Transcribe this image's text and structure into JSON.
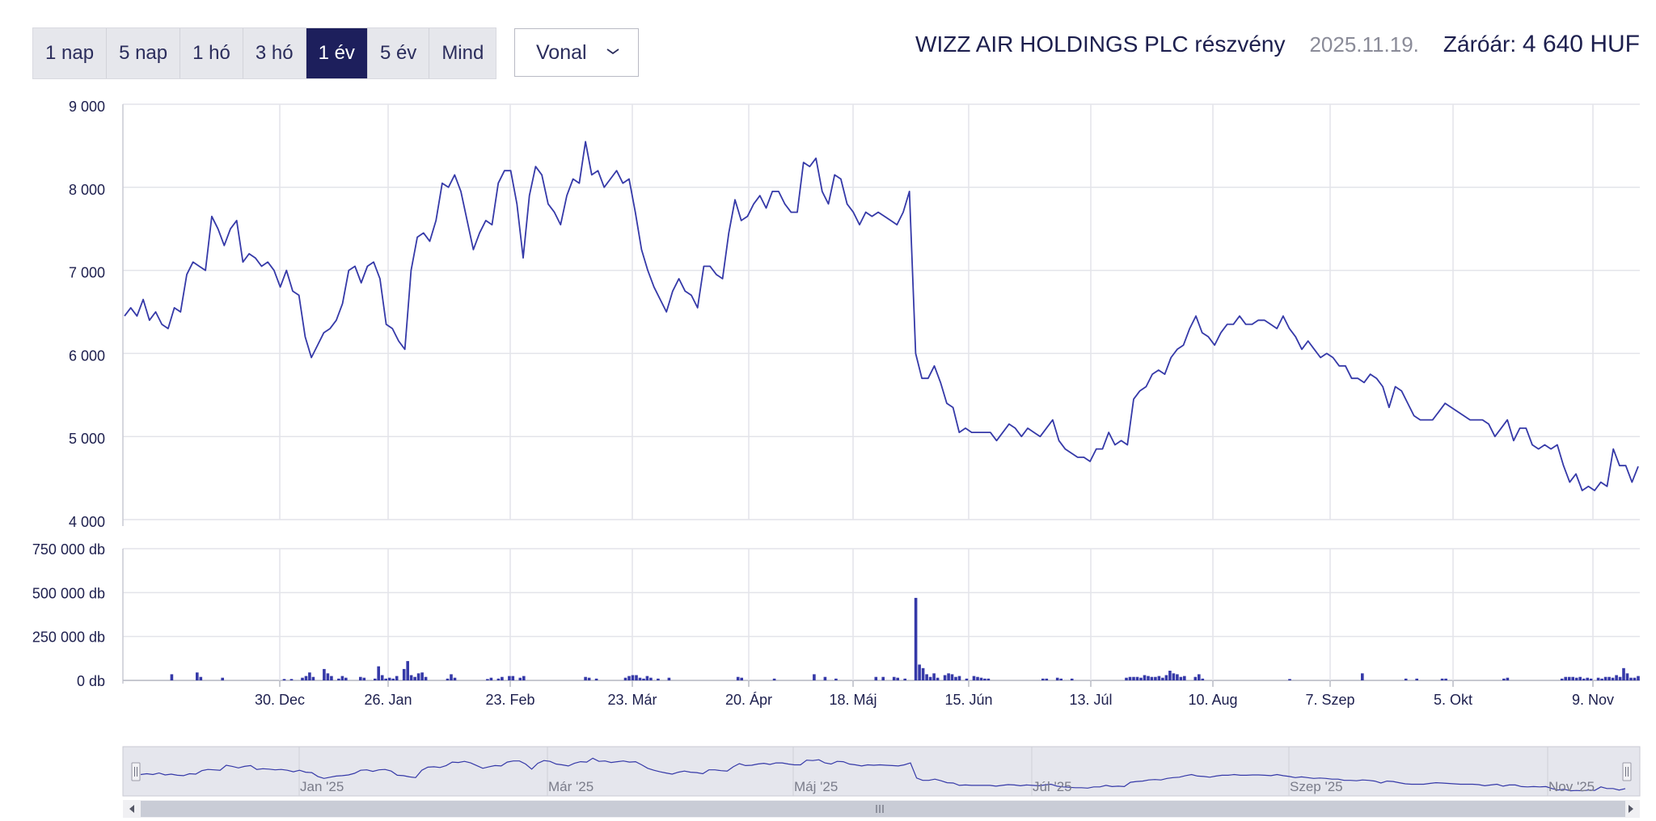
{
  "tabs": [
    {
      "label": "1 nap",
      "active": false
    },
    {
      "label": "5 nap",
      "active": false
    },
    {
      "label": "1 hó",
      "active": false
    },
    {
      "label": "3 hó",
      "active": false
    },
    {
      "label": "1 év",
      "active": true
    },
    {
      "label": "5 év",
      "active": false
    },
    {
      "label": "Mind",
      "active": false
    }
  ],
  "chart_type_select": {
    "value": "Vonal"
  },
  "header": {
    "title": "WIZZ AIR HOLDINGS PLC részvény",
    "date": "2025.11.19.",
    "close_label": "Záróár:",
    "close_value": "4 640 HUF"
  },
  "colors": {
    "line": "#3539a8",
    "bar": "#3539a8",
    "active_tab": "#1d1f5c",
    "grid": "#e3e4ea",
    "navigator_mask": "#e5e6ed"
  },
  "chart_data": [
    {
      "type": "line",
      "ylim": [
        4000,
        9000
      ],
      "y_ticks": [
        "9 000",
        "8 000",
        "7 000",
        "6 000",
        "5 000",
        "4 000"
      ],
      "x_ticks": [
        "30. Dec",
        "26. Jan",
        "23. Feb",
        "23. Már",
        "20. Ápr",
        "18. Máj",
        "15. Jún",
        "13. Júl",
        "10. Aug",
        "7. Szep",
        "5. Okt",
        "9. Nov"
      ],
      "series": [
        {
          "values": [
            6450,
            6550,
            6450,
            6650,
            6400,
            6500,
            6350,
            6300,
            6550,
            6500,
            6950,
            7100,
            7050,
            7000,
            7650,
            7500,
            7300,
            7500,
            7600,
            7100,
            7200,
            7150,
            7050,
            7100,
            7000,
            6800,
            7000,
            6750,
            6700,
            6200,
            5950,
            6100,
            6250,
            6300,
            6400,
            6600,
            7000,
            7050,
            6850,
            7050,
            7100,
            6900,
            6350,
            6300,
            6150,
            6050,
            7000,
            7400,
            7450,
            7350,
            7600,
            8050,
            8000,
            8150,
            7950,
            7600,
            7250,
            7450,
            7600,
            7550,
            8050,
            8200,
            8200,
            7800,
            7150,
            7900,
            8250,
            8150,
            7800,
            7700,
            7550,
            7900,
            8100,
            8050,
            8550,
            8150,
            8200,
            8000,
            8100,
            8200,
            8050,
            8100,
            7700,
            7250,
            7000,
            6800,
            6650,
            6500,
            6750,
            6900,
            6750,
            6700,
            6550,
            7050,
            7050,
            6950,
            6900,
            7450,
            7850,
            7600,
            7650,
            7800,
            7900,
            7750,
            7950,
            7950,
            7800,
            7700,
            7700,
            8300,
            8250,
            8350,
            7950,
            7800,
            8150,
            8100,
            7800,
            7700,
            7550,
            7700,
            7650,
            7700,
            7650,
            7600,
            7550,
            7700,
            7950,
            6000,
            5700,
            5700,
            5850,
            5650,
            5400,
            5350,
            5050,
            5100,
            5050,
            5050,
            5050,
            5050,
            4950,
            5050,
            5150,
            5100,
            5000,
            5100,
            5050,
            5000,
            5100,
            5200,
            4950,
            4850,
            4800,
            4750,
            4750,
            4700,
            4850,
            4850,
            5050,
            4900,
            4950,
            4900,
            5450,
            5550,
            5600,
            5750,
            5800,
            5750,
            5950,
            6050,
            6100,
            6300,
            6450,
            6250,
            6200,
            6100,
            6250,
            6350,
            6350,
            6450,
            6350,
            6350,
            6400,
            6400,
            6350,
            6300,
            6450,
            6300,
            6200,
            6050,
            6150,
            6050,
            5950,
            6000,
            5950,
            5850,
            5850,
            5700,
            5700,
            5650,
            5750,
            5700,
            5600,
            5350,
            5600,
            5550,
            5400,
            5250,
            5200,
            5200,
            5200,
            5300,
            5400,
            5350,
            5300,
            5250,
            5200,
            5200,
            5200,
            5150,
            5000,
            5100,
            5200,
            4950,
            5100,
            5100,
            4900,
            4850,
            4900,
            4850,
            4900,
            4650,
            4450,
            4550,
            4350,
            4400,
            4350,
            4450,
            4400,
            4850,
            4650,
            4650,
            4450,
            4640
          ]
        }
      ]
    },
    {
      "type": "bar",
      "ylim": [
        0,
        750000
      ],
      "y_ticks": [
        "750 000 db",
        "500 000 db",
        "250 000 db",
        "0 db"
      ],
      "series": [
        {
          "values": [
            0,
            0,
            0,
            0,
            0,
            0,
            0,
            0,
            0,
            0,
            0,
            0,
            0,
            35000,
            0,
            0,
            0,
            0,
            0,
            0,
            45000,
            20000,
            0,
            0,
            0,
            0,
            0,
            15000,
            0,
            0,
            0,
            0,
            0,
            0,
            0,
            0,
            0,
            0,
            0,
            0,
            0,
            0,
            0,
            0,
            8000,
            0,
            8000,
            0,
            0,
            15000,
            25000,
            45000,
            20000,
            0,
            0,
            65000,
            40000,
            25000,
            0,
            10000,
            25000,
            15000,
            0,
            0,
            0,
            20000,
            15000,
            0,
            0,
            10000,
            80000,
            30000,
            10000,
            15000,
            10000,
            25000,
            0,
            65000,
            110000,
            30000,
            20000,
            40000,
            45000,
            20000,
            0,
            0,
            0,
            0,
            0,
            10000,
            35000,
            15000,
            0,
            0,
            0,
            0,
            0,
            0,
            0,
            0,
            8000,
            15000,
            0,
            10000,
            20000,
            0,
            25000,
            25000,
            0,
            15000,
            25000,
            0,
            0,
            0,
            0,
            0,
            0,
            0,
            0,
            0,
            0,
            0,
            0,
            0,
            0,
            0,
            0,
            20000,
            15000,
            0,
            10000,
            0,
            0,
            0,
            0,
            0,
            0,
            0,
            15000,
            25000,
            30000,
            30000,
            15000,
            10000,
            25000,
            15000,
            0,
            10000,
            0,
            0,
            15000,
            0,
            0,
            0,
            0,
            0,
            0,
            0,
            0,
            0,
            0,
            0,
            0,
            0,
            0,
            0,
            0,
            0,
            0,
            20000,
            15000,
            0,
            0,
            0,
            0,
            0,
            0,
            0,
            0,
            10000,
            0,
            0,
            0,
            0,
            0,
            0,
            0,
            0,
            0,
            0,
            35000,
            0,
            0,
            20000,
            0,
            0,
            10000,
            0,
            0,
            0,
            0,
            0,
            0,
            0,
            0,
            0,
            0,
            20000,
            0,
            20000,
            0,
            0,
            20000,
            15000,
            0,
            10000,
            0,
            0,
            470000,
            90000,
            70000,
            35000,
            20000,
            40000,
            15000,
            0,
            30000,
            40000,
            35000,
            20000,
            25000,
            0,
            10000,
            0,
            25000,
            20000,
            15000,
            10000,
            10000,
            0,
            0,
            0,
            0,
            0,
            0,
            0,
            0,
            0,
            0,
            0,
            0,
            0,
            0,
            10000,
            10000,
            0,
            0,
            15000,
            10000,
            0,
            0,
            10000,
            0,
            0,
            0,
            0,
            0,
            0,
            0,
            0,
            0,
            0,
            0,
            0,
            0,
            0,
            15000,
            20000,
            20000,
            20000,
            15000,
            30000,
            25000,
            20000,
            20000,
            25000,
            15000,
            30000,
            55000,
            40000,
            35000,
            20000,
            25000,
            0,
            0,
            20000,
            35000,
            10000,
            0,
            0,
            0,
            0,
            0,
            0,
            0,
            0,
            0,
            0,
            0,
            0,
            0,
            0,
            0,
            0,
            0,
            0,
            0,
            0,
            0,
            0,
            0,
            8000,
            0,
            0,
            0,
            0,
            0,
            0,
            0,
            0,
            0,
            0,
            0,
            0,
            0,
            0,
            0,
            0,
            0,
            0,
            0,
            40000,
            0,
            0,
            0,
            0,
            0,
            0,
            0,
            0,
            0,
            0,
            0,
            10000,
            0,
            0,
            10000,
            0,
            0,
            0,
            0,
            0,
            0,
            10000,
            10000,
            0,
            0,
            0,
            0,
            0,
            0,
            0,
            0,
            0,
            0,
            0,
            0,
            0,
            0,
            0,
            10000,
            15000,
            0,
            0,
            0,
            0,
            0,
            0,
            0,
            0,
            0,
            0,
            0,
            0,
            0,
            0,
            10000,
            20000,
            20000,
            20000,
            15000,
            20000,
            10000,
            15000,
            10000,
            0,
            15000,
            10000,
            20000,
            20000,
            15000,
            30000,
            20000,
            70000,
            40000,
            15000,
            15000,
            25000
          ]
        }
      ]
    },
    {
      "type": "area",
      "role": "navigator",
      "x_ticks": [
        "Jan '25",
        "Már '25",
        "Máj '25",
        "Júl '25",
        "Szep '25",
        "Nov '25"
      ]
    }
  ]
}
